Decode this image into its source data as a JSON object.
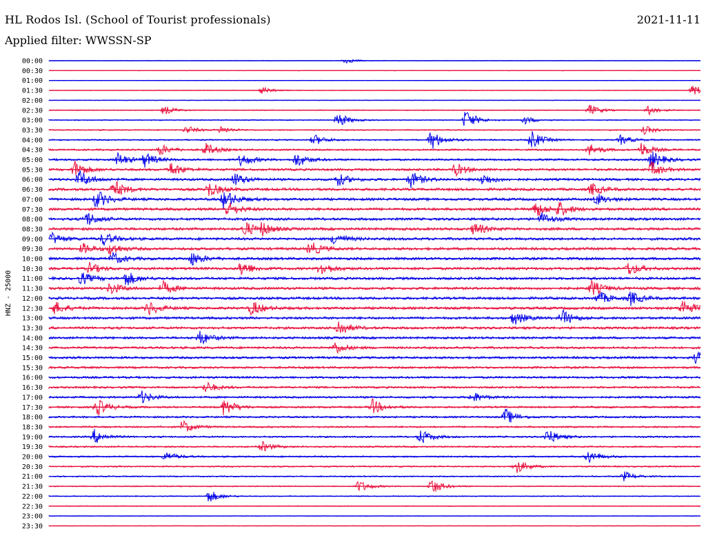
{
  "header": {
    "station": "HL Rodos Isl. (School of Tourist professionals)",
    "date": "2021-11-11",
    "filter": "Applied filter: WWSSN-SP"
  },
  "chart_data": {
    "type": "line",
    "title": "HL Rodos Isl. (School of Tourist professionals)",
    "ylabel": "HNZ - 25000",
    "row_labels": [
      "00:00",
      "00:30",
      "01:00",
      "01:30",
      "02:00",
      "02:30",
      "03:00",
      "03:30",
      "04:00",
      "04:30",
      "05:00",
      "05:30",
      "06:00",
      "06:30",
      "07:00",
      "07:30",
      "08:00",
      "08:30",
      "09:00",
      "09:30",
      "10:00",
      "10:30",
      "11:00",
      "11:30",
      "12:00",
      "12:30",
      "13:00",
      "13:30",
      "14:00",
      "14:30",
      "15:00",
      "15:30",
      "16:00",
      "16:30",
      "17:00",
      "17:30",
      "18:00",
      "18:30",
      "19:00",
      "19:30",
      "20:00",
      "20:30",
      "21:00",
      "21:30",
      "22:00",
      "22:30",
      "23:00",
      "23:30"
    ],
    "colors": [
      "#0000e6",
      "#e8103c"
    ],
    "noise_level": [
      0.15,
      0.15,
      0.15,
      0.2,
      0.2,
      0.25,
      0.3,
      0.35,
      0.45,
      0.55,
      0.65,
      0.75,
      0.8,
      0.85,
      0.85,
      0.85,
      0.85,
      0.85,
      0.85,
      0.85,
      0.85,
      0.85,
      0.85,
      0.85,
      0.85,
      0.85,
      0.8,
      0.8,
      0.75,
      0.75,
      0.75,
      0.7,
      0.7,
      0.65,
      0.65,
      0.6,
      0.6,
      0.55,
      0.55,
      0.5,
      0.5,
      0.45,
      0.4,
      0.35,
      0.3,
      0.25,
      0.2,
      0.18
    ],
    "events": [
      [
        [
          500,
          0.6
        ]
      ],
      [],
      [],
      [
        [
          380,
          0.8
        ],
        [
          1005,
          1.3
        ]
      ],
      [],
      [
        [
          238,
          1.0
        ],
        [
          855,
          1.2
        ],
        [
          940,
          1.0
        ]
      ],
      [
        [
          490,
          1.6
        ],
        [
          675,
          2.2
        ],
        [
          760,
          0.9
        ]
      ],
      [
        [
          270,
          0.9
        ],
        [
          320,
          0.8
        ],
        [
          935,
          0.9
        ]
      ],
      [
        [
          455,
          1.2
        ],
        [
          625,
          2.2
        ],
        [
          770,
          2.0
        ],
        [
          900,
          1.0
        ]
      ],
      [
        [
          232,
          1.2
        ],
        [
          298,
          1.4
        ],
        [
          855,
          1.3
        ],
        [
          930,
          1.5
        ]
      ],
      [
        [
          170,
          1.5
        ],
        [
          210,
          1.5
        ],
        [
          350,
          1.4
        ],
        [
          430,
          1.6
        ],
        [
          945,
          1.9
        ]
      ],
      [
        [
          108,
          1.9
        ],
        [
          248,
          1.5
        ],
        [
          660,
          1.3
        ],
        [
          945,
          1.5
        ]
      ],
      [
        [
          115,
          1.9
        ],
        [
          340,
          1.4
        ],
        [
          490,
          1.3
        ],
        [
          595,
          1.8
        ],
        [
          700,
          1.2
        ]
      ],
      [
        [
          165,
          1.9
        ],
        [
          302,
          1.6
        ],
        [
          858,
          1.3
        ]
      ],
      [
        [
          140,
          2.0
        ],
        [
          325,
          2.1
        ],
        [
          865,
          1.2
        ]
      ],
      [
        [
          330,
          1.5
        ],
        [
          775,
          1.8
        ],
        [
          810,
          1.5
        ]
      ],
      [
        [
          125,
          1.6
        ],
        [
          785,
          1.3
        ]
      ],
      [
        [
          355,
          1.6
        ],
        [
          688,
          1.4
        ],
        [
          380,
          1.2
        ]
      ],
      [
        [
          75,
          1.2
        ],
        [
          150,
          1.4
        ],
        [
          485,
          1.3
        ]
      ],
      [
        [
          160,
          1.2
        ],
        [
          450,
          1.5
        ],
        [
          120,
          1.1
        ]
      ],
      [
        [
          163,
          1.3
        ],
        [
          278,
          1.4
        ]
      ],
      [
        [
          130,
          1.1
        ],
        [
          350,
          1.6
        ],
        [
          465,
          1.5
        ],
        [
          912,
          1.4
        ]
      ],
      [
        [
          118,
          1.3
        ],
        [
          183,
          1.6
        ]
      ],
      [
        [
          160,
          1.3
        ],
        [
          236,
          1.4
        ],
        [
          858,
          1.6
        ]
      ],
      [
        [
          868,
          1.4
        ],
        [
          915,
          1.4
        ]
      ],
      [
        [
          80,
          1.3
        ],
        [
          215,
          1.5
        ],
        [
          365,
          1.6
        ],
        [
          990,
          1.8
        ]
      ],
      [
        [
          745,
          1.5
        ],
        [
          815,
          1.7
        ]
      ],
      [
        [
          490,
          1.8
        ]
      ],
      [
        [
          290,
          1.5
        ]
      ],
      [
        [
          485,
          1.3
        ]
      ],
      [
        [
          1010,
          1.3
        ]
      ],
      [],
      [],
      [
        [
          298,
          1.2
        ]
      ],
      [
        [
          205,
          1.3
        ],
        [
          685,
          1.1
        ]
      ],
      [
        [
          140,
          1.9
        ],
        [
          325,
          1.9
        ],
        [
          540,
          1.6
        ]
      ],
      [
        [
          733,
          1.7
        ]
      ],
      [
        [
          265,
          1.4
        ]
      ],
      [
        [
          137,
          1.5
        ],
        [
          610,
          1.6
        ],
        [
          793,
          1.7
        ]
      ],
      [
        [
          380,
          1.1
        ]
      ],
      [
        [
          853,
          1.4
        ],
        [
          240,
          1.0
        ]
      ],
      [
        [
          748,
          1.6
        ]
      ],
      [
        [
          905,
          1.0
        ]
      ],
      [
        [
          520,
          1.3
        ],
        [
          625,
          1.8
        ]
      ],
      [
        [
          303,
          1.4
        ]
      ],
      [],
      [],
      []
    ]
  }
}
